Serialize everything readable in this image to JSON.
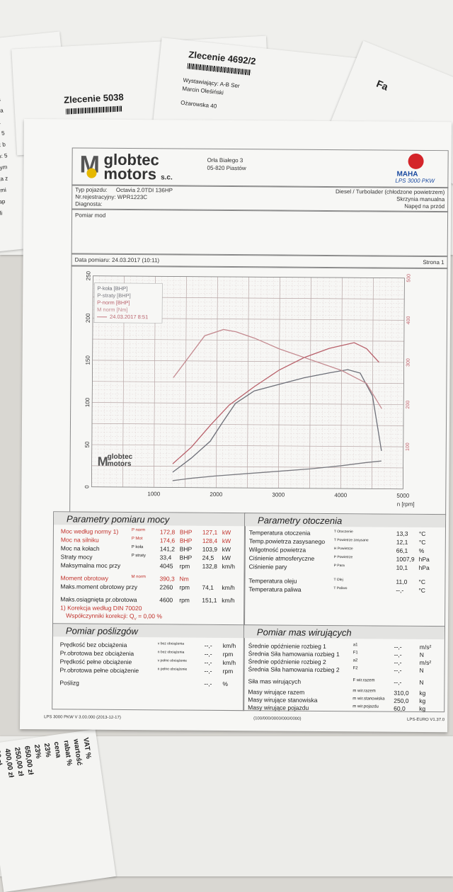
{
  "background": {
    "left_fragments": [
      "ie 6",
      "iający",
      "n Oleś",
      "rowska",
      "118-1",
      "iom.: 5",
      "mail: b",
      "ontó: 5",
      "Przym",
      "data z",
      "termi",
      "Nap",
      "Kli"
    ],
    "order1": "Zlecenie 5038",
    "order2": "Zlecenie 4692/2",
    "issuer_label": "Wystawiający: A-B Ser",
    "issuer_name": "Marcin Oleśiński",
    "issuer_street": "Ożarowska 40",
    "corner_text": "Fa",
    "receipt": [
      "00 zł",
      "00 zł",
      "400,00 zł",
      "250,00 zł",
      "650,00 zł",
      "23%",
      "23%",
      "cena",
      "rabat %",
      "wartość",
      "VAT %"
    ]
  },
  "header": {
    "logo_line1": "globtec",
    "logo_line2": "motors",
    "logo_suffix": "s.c.",
    "address_street": "Orła Białego 3",
    "address_city": "05-820 Piastów",
    "maha_logo": "MAHA",
    "maha_product": "LPS 3000 PKW"
  },
  "vehicle": {
    "type_label": "Typ pojazdu:",
    "type_value": "Octavia 2.0TDI 136HP",
    "reg_label": "Nr.rejestracyjny:",
    "reg_value": "WPR1223C",
    "diag_label": "Diagnosta:",
    "engine": "Diesel / Turbolader (chłodzone powietrzem)",
    "gearbox": "Skrzynia manualna",
    "drive": "Napęd na przód",
    "measure_label": "Pomiar mod"
  },
  "meta": {
    "date_label": "Data pomiaru: 24.03.2017 (10:11)",
    "page_label": "Strona 1"
  },
  "chart_data": {
    "type": "line",
    "xlabel": "n [rpm]",
    "xlim": [
      0,
      5000
    ],
    "ylim_left": [
      0,
      250
    ],
    "ylim_right": [
      0,
      500
    ],
    "x_ticks": [
      "1000",
      "2000",
      "3000",
      "4000",
      "5000"
    ],
    "y_ticks_left": [
      "0",
      "50",
      "100",
      "150",
      "200",
      "250"
    ],
    "y_ticks_right": [
      "100",
      "200",
      "300",
      "400",
      "500"
    ],
    "legend": [
      "P-koła [BHP]",
      "P-straty [BHP]",
      "P-norm [BHP]",
      "M norm [Nm]",
      "24.03.2017 8:51"
    ],
    "series": [
      {
        "name": "P-koła [BHP]",
        "color": "#6d6f78",
        "x": [
          1300,
          1600,
          1900,
          2100,
          2300,
          2600,
          3000,
          3400,
          3800,
          4100,
          4300,
          4500,
          4650
        ],
        "y": [
          18,
          35,
          55,
          78,
          100,
          115,
          123,
          131,
          137,
          141,
          137,
          110,
          45
        ]
      },
      {
        "name": "P-straty [BHP]",
        "color": "#7a7a80",
        "x": [
          1300,
          1600,
          2000,
          2500,
          3000,
          3500,
          4000,
          4400,
          4650
        ],
        "y": [
          8,
          11,
          14,
          17,
          20,
          23,
          27,
          31,
          33
        ]
      },
      {
        "name": "P-norm [BHP]",
        "color": "#b8606a",
        "x": [
          1300,
          1600,
          1900,
          2200,
          2600,
          3000,
          3400,
          3800,
          4200,
          4400,
          4600
        ],
        "y": [
          28,
          48,
          74,
          98,
          120,
          140,
          155,
          166,
          173,
          166,
          150
        ]
      },
      {
        "name": "M norm [Nm]",
        "color": "#c48a90",
        "x": [
          1300,
          1500,
          1800,
          2100,
          2300,
          2600,
          3000,
          3500,
          4000,
          4400,
          4650
        ],
        "y": [
          260,
          300,
          360,
          375,
          370,
          355,
          330,
          305,
          280,
          250,
          190
        ]
      }
    ]
  },
  "params_moc": {
    "title": "Parametry pomiaru mocy",
    "rows": [
      {
        "label": "Moc według normy 1)",
        "sym": "P norm",
        "v1": "172,8",
        "u1": "BHP",
        "v2": "127,1",
        "u2": "kW",
        "red": true
      },
      {
        "label": "Moc na silniku",
        "sym": "P Mot",
        "v1": "174,6",
        "u1": "BHP",
        "v2": "128,4",
        "u2": "kW",
        "red": true
      },
      {
        "label": "Moc na kołach",
        "sym": "P koła",
        "v1": "141,2",
        "u1": "BHP",
        "v2": "103,9",
        "u2": "kW",
        "red": false
      },
      {
        "label": "Straty mocy",
        "sym": "P straty",
        "v1": "33,4",
        "u1": "BHP",
        "v2": "24,5",
        "u2": "kW",
        "red": false
      },
      {
        "label": "Maksymalna moc przy",
        "sym": "",
        "v1": "4045",
        "u1": "rpm",
        "v2": "132,8",
        "u2": "km/h",
        "red": false
      },
      {
        "label": "Moment obrotowy",
        "sym": "M norm",
        "v1": "390,3",
        "u1": "Nm",
        "v2": "",
        "u2": "",
        "red": true
      },
      {
        "label": "Maks.moment obrotowy przy",
        "sym": "",
        "v1": "2260",
        "u1": "rpm",
        "v2": "74,1",
        "u2": "km/h",
        "red": false
      },
      {
        "label": "Maks.osiągnięta pr.obrotowa",
        "sym": "",
        "v1": "4600",
        "u1": "rpm",
        "v2": "151,1",
        "u2": "km/h",
        "red": false
      }
    ],
    "korekcja": "1) Korekcja według DIN 70020",
    "wspolczynnik": "Współczynniki korekcji: Q",
    "wspolczynnik_value": "0,00 %"
  },
  "params_otoczenia": {
    "title": "Parametry otoczenia",
    "rows": [
      {
        "label": "Temperatura otoczenia",
        "sym": "T Otoczenie",
        "v": "13,3",
        "u": "°C"
      },
      {
        "label": "Temp.powietrza zasysanego",
        "sym": "T Powietrze zasysane",
        "v": "12,1",
        "u": "°C"
      },
      {
        "label": "Wilgotność powietrza",
        "sym": "H Powietrze",
        "v": "66,1",
        "u": "%"
      },
      {
        "label": "Ciśnienie atmosferyczne",
        "sym": "P Powietrze",
        "v": "1007,9",
        "u": "hPa"
      },
      {
        "label": "Ciśnienie pary",
        "sym": "P Para",
        "v": "10,1",
        "u": "hPa"
      },
      {
        "label": "Temperatura oleju",
        "sym": "T Olej",
        "v": "11,0",
        "u": "°C"
      },
      {
        "label": "Temperatura paliwa",
        "sym": "T Paliwo",
        "v": "--,-",
        "u": "°C"
      }
    ]
  },
  "poslizg": {
    "title": "Pomiar poślizgów",
    "rows": [
      {
        "label": "Prędkość bez obciążenia",
        "sym": "v bez obciążenia",
        "v": "--,-",
        "u": "km/h"
      },
      {
        "label": "Pr.obrotowa bez obciążenia",
        "sym": "n bez obciążenia",
        "v": "--,-",
        "u": "rpm"
      },
      {
        "label": "Prędkość pełne obciążenie",
        "sym": "v pełne obciążenie",
        "v": "--,-",
        "u": "km/h"
      },
      {
        "label": "Pr.obrotowa pełne obciążenie",
        "sym": "n pełne obciążenie",
        "v": "--,-",
        "u": "rpm"
      },
      {
        "label": "Poślizg",
        "sym": "",
        "v": "--,-",
        "u": "%"
      }
    ]
  },
  "masy": {
    "title": "Pomiar mas wirujących",
    "rows": [
      {
        "label": "Średnie opóźnienie rozbieg 1",
        "sym": "a1",
        "v": "--,-",
        "u": "m/s²"
      },
      {
        "label": "Średnia Siła hamowania rozbieg 1",
        "sym": "F1",
        "v": "--,-",
        "u": "N"
      },
      {
        "label": "Średnie opóźnienie rozbieg 2",
        "sym": "a2",
        "v": "--,-",
        "u": "m/s²"
      },
      {
        "label": "Średnia Siła hamowania rozbieg 2",
        "sym": "F2",
        "v": "--,-",
        "u": "N"
      },
      {
        "label": "Siła mas wirujących",
        "sym": "F wir.razem",
        "v": "--,-",
        "u": "N"
      },
      {
        "label": "Masy wirujące razem",
        "sym": "m wir.razem",
        "v": "310,0",
        "u": "kg"
      },
      {
        "label": "Masy wirujące stanowiska",
        "sym": "m wir.stanowiska",
        "v": "250,0",
        "u": "kg"
      },
      {
        "label": "Masy wirujące pojazdu",
        "sym": "m wir.pojazdu",
        "v": "60,0",
        "u": "kg"
      }
    ]
  },
  "footer": {
    "left": "LPS 3000 PKW V 3.00.000 (2013-12-17)",
    "mid": "(100/000/0000/000/0000)",
    "right": "LPS-EURO V1.37.0"
  }
}
